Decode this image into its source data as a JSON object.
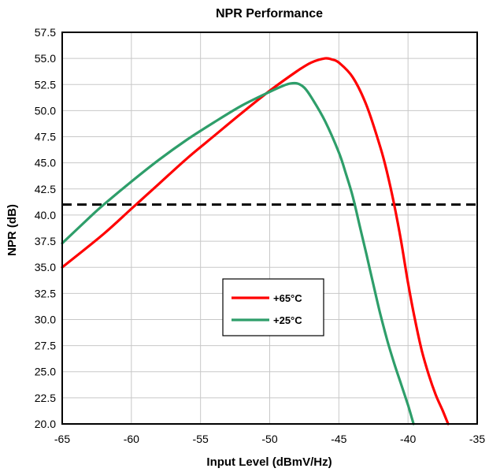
{
  "chart_data": {
    "type": "line",
    "title": "NPR Performance",
    "xlabel": "Input Level (dBmV/Hz)",
    "ylabel": "NPR (dB)",
    "xlim": [
      -65,
      -35
    ],
    "ylim": [
      20.0,
      57.5
    ],
    "x_ticks": [
      "-65",
      "-60",
      "-55",
      "-50",
      "-45",
      "-40",
      "-35"
    ],
    "y_ticks": [
      "20.0",
      "22.5",
      "25.0",
      "27.5",
      "30.0",
      "32.5",
      "35.0",
      "37.5",
      "40.0",
      "42.5",
      "45.0",
      "47.5",
      "50.0",
      "52.5",
      "55.0",
      "57.5"
    ],
    "grid": true,
    "legend_position": "center",
    "threshold": {
      "y": 41.0,
      "style": "dashed",
      "color": "#000000"
    },
    "series": [
      {
        "name": "+65°C",
        "color": "#ff0000",
        "points": [
          [
            -65,
            35.0
          ],
          [
            -62,
            38.2
          ],
          [
            -60,
            40.6
          ],
          [
            -58,
            43.0
          ],
          [
            -56,
            45.4
          ],
          [
            -54,
            47.6
          ],
          [
            -52,
            49.8
          ],
          [
            -50,
            51.9
          ],
          [
            -48,
            53.8
          ],
          [
            -47,
            54.6
          ],
          [
            -46,
            55.0
          ],
          [
            -45.5,
            54.9
          ],
          [
            -45,
            54.6
          ],
          [
            -44,
            53.2
          ],
          [
            -43,
            50.5
          ],
          [
            -42,
            46.5
          ],
          [
            -41.5,
            44.0
          ],
          [
            -41,
            41.0
          ],
          [
            -40.5,
            37.5
          ],
          [
            -40,
            33.5
          ],
          [
            -39.5,
            30.0
          ],
          [
            -39,
            27.0
          ],
          [
            -38.5,
            24.7
          ],
          [
            -38,
            22.8
          ],
          [
            -37.5,
            21.3
          ],
          [
            -37.1,
            20.0
          ]
        ]
      },
      {
        "name": "+25°C",
        "color": "#2e9e6a",
        "points": [
          [
            -65,
            37.3
          ],
          [
            -63,
            39.8
          ],
          [
            -62,
            41.0
          ],
          [
            -60,
            43.2
          ],
          [
            -58,
            45.3
          ],
          [
            -56,
            47.2
          ],
          [
            -54,
            48.9
          ],
          [
            -52,
            50.5
          ],
          [
            -50,
            51.8
          ],
          [
            -49,
            52.4
          ],
          [
            -48.5,
            52.6
          ],
          [
            -48,
            52.6
          ],
          [
            -47.5,
            52.2
          ],
          [
            -47,
            51.3
          ],
          [
            -46,
            49.0
          ],
          [
            -45,
            46.0
          ],
          [
            -44.5,
            44.0
          ],
          [
            -44,
            41.8
          ],
          [
            -43.5,
            39.0
          ],
          [
            -43,
            36.2
          ],
          [
            -42.5,
            33.3
          ],
          [
            -42,
            30.5
          ],
          [
            -41.5,
            28.0
          ],
          [
            -41,
            25.8
          ],
          [
            -40.5,
            23.8
          ],
          [
            -40,
            21.8
          ],
          [
            -39.6,
            20.0
          ]
        ]
      }
    ]
  }
}
